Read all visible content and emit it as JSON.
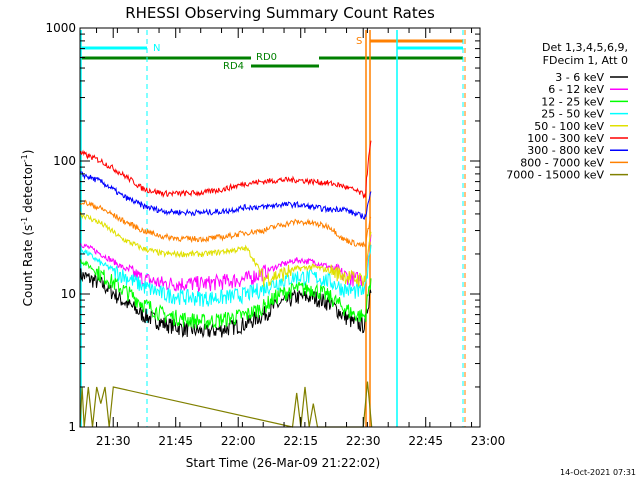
{
  "chart_data": {
    "type": "line",
    "title": "RHESSI Observing Summary Count Rates",
    "xlabel": "Start Time (26-Mar-09 21:22:02)",
    "ylabel_main": "Count Rate (s",
    "ylabel_sup1": "-1",
    "ylabel_mid": " detector",
    "ylabel_sup2": "-1",
    "ylabel_end": ")",
    "yscale": "log",
    "ylim": [
      1,
      1000
    ],
    "xlim_minutes": [
      0,
      96
    ],
    "x_unit_note": "minutes after 21:22:02",
    "y_ticks": [
      {
        "label": "1000",
        "value": 1000
      },
      {
        "label": "100",
        "value": 100
      },
      {
        "label": "10",
        "value": 10
      },
      {
        "label": "1",
        "value": 1
      }
    ],
    "x_ticks": [
      {
        "label": "21:30",
        "minute": 7.97
      },
      {
        "label": "21:45",
        "minute": 22.97
      },
      {
        "label": "22:00",
        "minute": 37.97
      },
      {
        "label": "22:15",
        "minute": 52.97
      },
      {
        "label": "22:30",
        "minute": 67.97
      },
      {
        "label": "22:45",
        "minute": 82.97
      },
      {
        "label": "23:00",
        "minute": 97.97
      }
    ],
    "legend": {
      "header1": "Det 1,3,4,5,6,9,",
      "header2": "FDecim 1, Att 0",
      "placement": "right"
    },
    "series": [
      {
        "name": "3 - 6 keV",
        "color": "#000000",
        "x": [
          0,
          5,
          10,
          15,
          20,
          25,
          30,
          35,
          40,
          44,
          48,
          52,
          56,
          60,
          63,
          66,
          68.5,
          70
        ],
        "y": [
          14,
          12,
          9,
          7,
          6,
          5.5,
          5.2,
          5.5,
          6,
          7,
          8.5,
          9.5,
          9.5,
          8.5,
          7,
          6,
          5.8,
          12
        ]
      },
      {
        "name": "6 - 12 keV",
        "color": "#ff00ff",
        "x": [
          0,
          5,
          10,
          15,
          20,
          25,
          30,
          35,
          40,
          44,
          48,
          52,
          56,
          60,
          63,
          66,
          68.5,
          70
        ],
        "y": [
          24,
          20,
          16,
          13,
          12,
          12,
          12,
          12.5,
          13,
          14.5,
          16.5,
          18,
          17.5,
          16,
          14,
          13,
          13,
          30
        ]
      },
      {
        "name": "12 - 25 keV",
        "color": "#00ff00",
        "x": [
          0,
          5,
          10,
          15,
          20,
          25,
          30,
          35,
          40,
          44,
          48,
          52,
          56,
          60,
          63,
          66,
          68.5,
          70
        ],
        "y": [
          18,
          14,
          11,
          8.5,
          7,
          6.5,
          6.2,
          6.5,
          7,
          8,
          10,
          11,
          11,
          9.5,
          8,
          7,
          6.8,
          14
        ]
      },
      {
        "name": "25 - 50 keV",
        "color": "#00ffff",
        "x": [
          0,
          5,
          10,
          15,
          20,
          25,
          30,
          35,
          40,
          44,
          48,
          52,
          56,
          60,
          63,
          66,
          68.5,
          70
        ],
        "y": [
          22,
          17,
          14,
          11.5,
          10,
          9.5,
          9.3,
          9.5,
          10,
          11,
          12.5,
          13.5,
          13.5,
          12.5,
          11,
          10.5,
          10.5,
          25
        ]
      },
      {
        "name": "50 - 100 keV",
        "color": "#e0e000",
        "x": [
          0,
          5,
          10,
          15,
          20,
          25,
          30,
          35,
          40,
          44,
          48,
          52,
          56,
          60,
          63,
          66,
          68.5,
          70
        ],
        "y": [
          40,
          34,
          26,
          22,
          20,
          20,
          20,
          21,
          22,
          13,
          14,
          15.5,
          16,
          15,
          14,
          13,
          13,
          32
        ]
      },
      {
        "name": "100 - 300 keV",
        "color": "#ff0000",
        "x": [
          0,
          5,
          10,
          15,
          20,
          25,
          30,
          35,
          40,
          44,
          48,
          52,
          56,
          60,
          63,
          66,
          68.5,
          70
        ],
        "y": [
          115,
          100,
          80,
          62,
          57,
          57,
          58,
          62,
          68,
          70,
          72,
          72,
          70,
          68,
          65,
          60,
          55,
          150
        ]
      },
      {
        "name": "300 - 800 keV",
        "color": "#0000ff",
        "x": [
          0,
          5,
          10,
          15,
          20,
          25,
          30,
          35,
          40,
          44,
          48,
          52,
          56,
          60,
          63,
          66,
          68.5,
          70
        ],
        "y": [
          80,
          70,
          55,
          46,
          42,
          41,
          41,
          42,
          45,
          45,
          47,
          47,
          45,
          43,
          44,
          40,
          38,
          60
        ]
      },
      {
        "name": "800 - 7000 keV",
        "color": "#ff8000",
        "x": [
          0,
          5,
          10,
          15,
          20,
          25,
          30,
          35,
          40,
          44,
          48,
          52,
          56,
          60,
          63,
          66,
          68.5,
          70
        ],
        "y": [
          50,
          44,
          36,
          30,
          27,
          26,
          26,
          27,
          29,
          30,
          33,
          35,
          34,
          32,
          26,
          24,
          23,
          40
        ]
      },
      {
        "name": "7000 - 15000 keV",
        "color": "#808000",
        "x": [
          0,
          0.5,
          1,
          2,
          3,
          4,
          5,
          6,
          7,
          8,
          51,
          52,
          53,
          54,
          55,
          56,
          57,
          68,
          69,
          70
        ],
        "y": [
          1,
          2,
          1,
          2,
          1,
          2,
          1.5,
          2,
          1,
          2,
          1,
          1.8,
          1,
          2,
          1,
          1.5,
          1,
          1,
          2.2,
          1
        ]
      }
    ],
    "annotations": {
      "rd0_label": "RD0",
      "rd4_label": "RD4",
      "n_label": "N",
      "s_label": "S"
    }
  },
  "footer": {
    "timestamp": "14-Oct-2021 07:31"
  }
}
